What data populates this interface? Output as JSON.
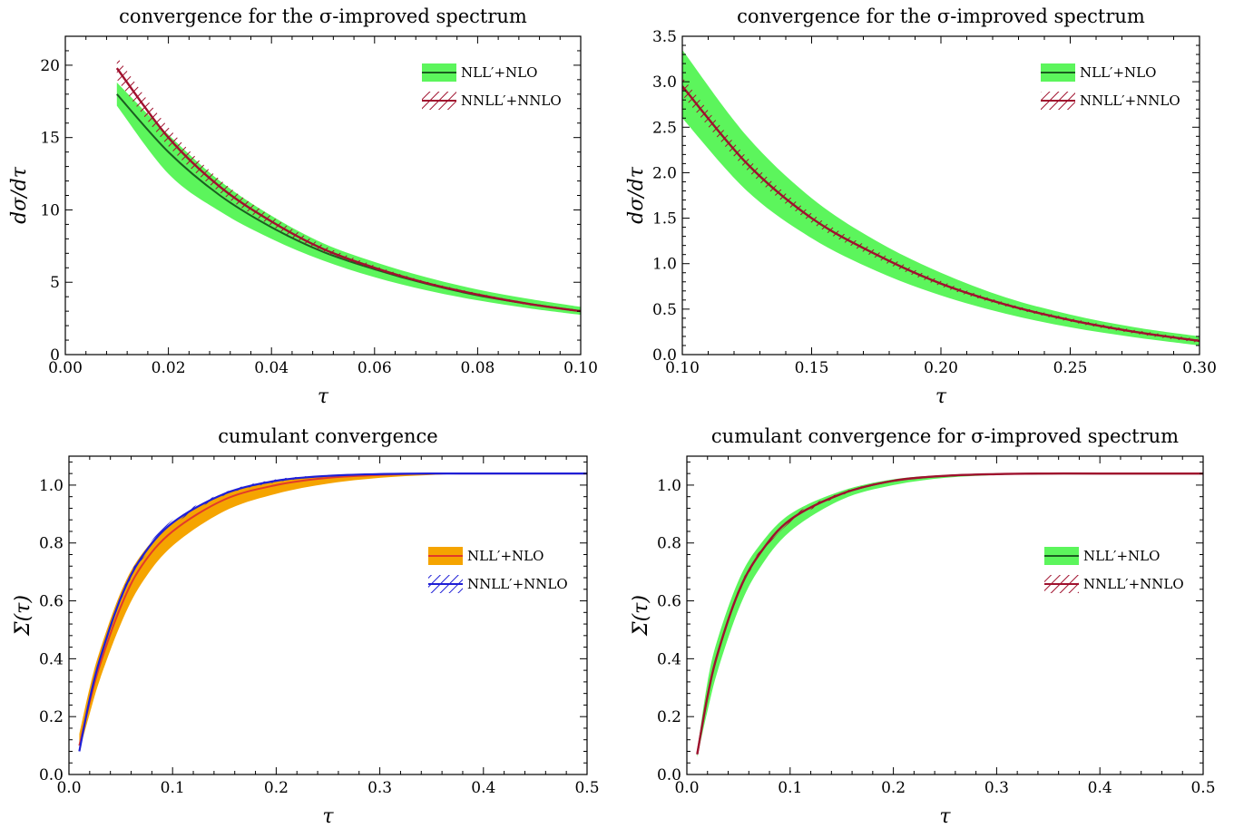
{
  "colors": {
    "green": "#5cf55c",
    "dark_green": "#1b5e20",
    "red": "#a0112e",
    "orange": "#f5a400",
    "orange_line": "#e23b2a",
    "blue": "#1f1fd6"
  },
  "chart_data": [
    {
      "type": "area",
      "title": "convergence for the σ-improved spectrum",
      "xlabel": "τ",
      "ylabel": "dσ/dτ",
      "xlim": [
        0.0,
        0.1
      ],
      "ylim": [
        0,
        22
      ],
      "xticks": [
        0.0,
        0.02,
        0.04,
        0.06,
        0.08,
        0.1
      ],
      "xtick_labels": [
        "0.00",
        "0.02",
        "0.04",
        "0.06",
        "0.08",
        "0.10"
      ],
      "yticks": [
        0,
        5,
        10,
        15,
        20
      ],
      "ytick_labels": [
        "0",
        "5",
        "10",
        "15",
        "20"
      ],
      "grid": false,
      "legend_position": "top-right",
      "series": [
        {
          "name": "NLL′+NLO",
          "style": "green-band",
          "x": [
            0.01,
            0.02,
            0.03,
            0.04,
            0.05,
            0.06,
            0.07,
            0.08,
            0.09,
            0.1
          ],
          "y": [
            18.0,
            14.0,
            11.0,
            8.8,
            7.1,
            5.9,
            4.9,
            4.1,
            3.5,
            3.0
          ],
          "y_low": [
            17.2,
            12.5,
            9.9,
            8.0,
            6.5,
            5.35,
            4.45,
            3.75,
            3.2,
            2.75
          ],
          "y_high": [
            18.8,
            15.2,
            12.0,
            9.6,
            7.7,
            6.4,
            5.35,
            4.5,
            3.85,
            3.3
          ]
        },
        {
          "name": "NNLL′+NNLO",
          "style": "red-hatch",
          "x": [
            0.01,
            0.02,
            0.03,
            0.04,
            0.05,
            0.06,
            0.07,
            0.08,
            0.09,
            0.1
          ],
          "y": [
            19.8,
            15.0,
            11.6,
            9.2,
            7.3,
            6.0,
            4.95,
            4.15,
            3.5,
            3.0
          ],
          "y_low": [
            19.0,
            14.4,
            11.2,
            8.9,
            7.1,
            5.85,
            4.85,
            4.05,
            3.42,
            2.93
          ],
          "y_high": [
            20.6,
            15.7,
            12.1,
            9.55,
            7.55,
            6.15,
            5.05,
            4.25,
            3.58,
            3.07
          ]
        }
      ]
    },
    {
      "type": "area",
      "title": "convergence for the σ-improved spectrum",
      "xlabel": "τ",
      "ylabel": "dσ/dτ",
      "xlim": [
        0.1,
        0.3
      ],
      "ylim": [
        0.0,
        3.5
      ],
      "xticks": [
        0.1,
        0.15,
        0.2,
        0.25,
        0.3
      ],
      "xtick_labels": [
        "0.10",
        "0.15",
        "0.20",
        "0.25",
        "0.30"
      ],
      "yticks": [
        0.0,
        0.5,
        1.0,
        1.5,
        2.0,
        2.5,
        3.0,
        3.5
      ],
      "ytick_labels": [
        "0.0",
        "0.5",
        "1.0",
        "1.5",
        "2.0",
        "2.5",
        "3.0",
        "3.5"
      ],
      "grid": false,
      "legend_position": "top-right",
      "series": [
        {
          "name": "NLL′+NLO",
          "style": "green-band",
          "x": [
            0.1,
            0.125,
            0.15,
            0.175,
            0.2,
            0.225,
            0.25,
            0.275,
            0.3
          ],
          "y": [
            2.95,
            2.1,
            1.5,
            1.1,
            0.78,
            0.55,
            0.38,
            0.25,
            0.15
          ],
          "y_low": [
            2.6,
            1.8,
            1.28,
            0.92,
            0.65,
            0.45,
            0.3,
            0.19,
            0.1
          ],
          "y_high": [
            3.35,
            2.4,
            1.72,
            1.25,
            0.9,
            0.63,
            0.44,
            0.3,
            0.2
          ]
        },
        {
          "name": "NNLL′+NNLO",
          "style": "red-hatch",
          "x": [
            0.1,
            0.125,
            0.15,
            0.175,
            0.2,
            0.225,
            0.25,
            0.275,
            0.3
          ],
          "y": [
            2.95,
            2.1,
            1.5,
            1.1,
            0.78,
            0.55,
            0.38,
            0.25,
            0.15
          ],
          "y_low": [
            2.85,
            2.03,
            1.45,
            1.06,
            0.75,
            0.53,
            0.36,
            0.23,
            0.13
          ],
          "y_high": [
            3.05,
            2.17,
            1.55,
            1.14,
            0.81,
            0.57,
            0.4,
            0.27,
            0.17
          ]
        }
      ]
    },
    {
      "type": "area",
      "title": "cumulant convergence",
      "xlabel": "τ",
      "ylabel": "Σ(τ)",
      "xlim": [
        0.0,
        0.5
      ],
      "ylim": [
        0.0,
        1.1
      ],
      "xticks": [
        0.0,
        0.1,
        0.2,
        0.3,
        0.4,
        0.5
      ],
      "xtick_labels": [
        "0.0",
        "0.1",
        "0.2",
        "0.3",
        "0.4",
        "0.5"
      ],
      "yticks": [
        0.0,
        0.2,
        0.4,
        0.6,
        0.8,
        1.0
      ],
      "ytick_labels": [
        "0.0",
        "0.2",
        "0.4",
        "0.6",
        "0.8",
        "1.0"
      ],
      "grid": false,
      "legend_position": "center-right",
      "series": [
        {
          "name": "NLL′+NLO",
          "style": "orange-band",
          "x": [
            0.01,
            0.02,
            0.03,
            0.05,
            0.07,
            0.1,
            0.15,
            0.2,
            0.25,
            0.3,
            0.35,
            0.4,
            0.5
          ],
          "y": [
            0.1,
            0.25,
            0.38,
            0.58,
            0.72,
            0.84,
            0.95,
            1.0,
            1.025,
            1.035,
            1.04,
            1.04,
            1.04
          ],
          "y_low": [
            0.08,
            0.21,
            0.33,
            0.52,
            0.66,
            0.79,
            0.91,
            0.97,
            1.005,
            1.025,
            1.035,
            1.04,
            1.04
          ],
          "y_high": [
            0.14,
            0.3,
            0.43,
            0.63,
            0.76,
            0.87,
            0.97,
            1.015,
            1.032,
            1.038,
            1.04,
            1.04,
            1.04
          ]
        },
        {
          "name": "NNLL′+NNLO",
          "style": "blue-hatch",
          "x": [
            0.01,
            0.02,
            0.03,
            0.05,
            0.07,
            0.1,
            0.15,
            0.2,
            0.25,
            0.3,
            0.35,
            0.4,
            0.5
          ],
          "y": [
            0.08,
            0.26,
            0.4,
            0.61,
            0.75,
            0.87,
            0.97,
            1.015,
            1.032,
            1.038,
            1.04,
            1.04,
            1.04
          ],
          "y_low": [
            0.07,
            0.25,
            0.39,
            0.6,
            0.74,
            0.86,
            0.965,
            1.01,
            1.03,
            1.037,
            1.04,
            1.04,
            1.04
          ],
          "y_high": [
            0.09,
            0.27,
            0.41,
            0.62,
            0.76,
            0.88,
            0.975,
            1.02,
            1.034,
            1.039,
            1.04,
            1.04,
            1.04
          ]
        }
      ]
    },
    {
      "type": "area",
      "title": "cumulant convergence for σ-improved spectrum",
      "xlabel": "τ",
      "ylabel": "Σ(τ)",
      "xlim": [
        0.0,
        0.5
      ],
      "ylim": [
        0.0,
        1.1
      ],
      "xticks": [
        0.0,
        0.1,
        0.2,
        0.3,
        0.4,
        0.5
      ],
      "xtick_labels": [
        "0.0",
        "0.1",
        "0.2",
        "0.3",
        "0.4",
        "0.5"
      ],
      "yticks": [
        0.0,
        0.2,
        0.4,
        0.6,
        0.8,
        1.0
      ],
      "ytick_labels": [
        "0.0",
        "0.2",
        "0.4",
        "0.6",
        "0.8",
        "1.0"
      ],
      "grid": false,
      "legend_position": "center-right",
      "series": [
        {
          "name": "NLL′+NLO",
          "style": "green-band",
          "x": [
            0.01,
            0.02,
            0.03,
            0.05,
            0.07,
            0.1,
            0.15,
            0.2,
            0.25,
            0.3,
            0.35,
            0.4,
            0.5
          ],
          "y": [
            0.07,
            0.27,
            0.42,
            0.63,
            0.76,
            0.88,
            0.97,
            1.015,
            1.032,
            1.038,
            1.04,
            1.04,
            1.04
          ],
          "y_low": [
            0.06,
            0.22,
            0.36,
            0.57,
            0.71,
            0.84,
            0.95,
            1.0,
            1.025,
            1.035,
            1.04,
            1.04,
            1.04
          ],
          "y_high": [
            0.08,
            0.32,
            0.47,
            0.67,
            0.79,
            0.9,
            0.98,
            1.02,
            1.035,
            1.04,
            1.04,
            1.04,
            1.04
          ]
        },
        {
          "name": "NNLL′+NNLO",
          "style": "red-hatch",
          "x": [
            0.01,
            0.02,
            0.03,
            0.05,
            0.07,
            0.1,
            0.15,
            0.2,
            0.25,
            0.3,
            0.35,
            0.4,
            0.5
          ],
          "y": [
            0.07,
            0.27,
            0.42,
            0.63,
            0.76,
            0.88,
            0.97,
            1.015,
            1.032,
            1.038,
            1.04,
            1.04,
            1.04
          ],
          "y_low": [
            0.065,
            0.26,
            0.41,
            0.62,
            0.75,
            0.87,
            0.965,
            1.012,
            1.03,
            1.037,
            1.04,
            1.04,
            1.04
          ],
          "y_high": [
            0.075,
            0.28,
            0.43,
            0.64,
            0.77,
            0.89,
            0.975,
            1.018,
            1.034,
            1.039,
            1.04,
            1.04,
            1.04
          ]
        }
      ]
    }
  ]
}
